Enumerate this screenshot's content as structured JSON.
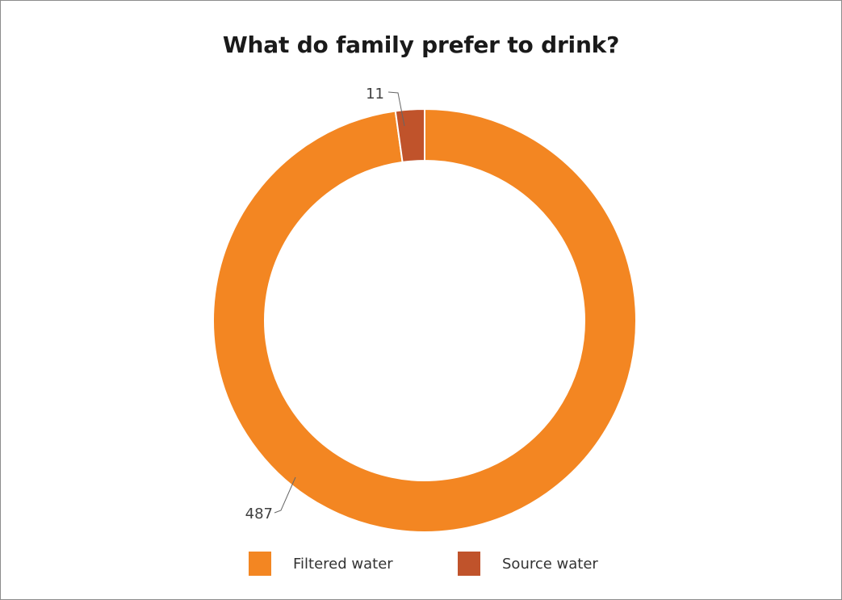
{
  "chart_data": {
    "type": "pie",
    "variant": "donut",
    "title": "What do family prefer to drink?",
    "categories": [
      "Filtered water",
      "Source water"
    ],
    "values": [
      487,
      11
    ],
    "data_labels": [
      "487",
      "11"
    ],
    "colors": [
      "#f38622",
      "#c0532b"
    ],
    "legend_position": "bottom"
  }
}
